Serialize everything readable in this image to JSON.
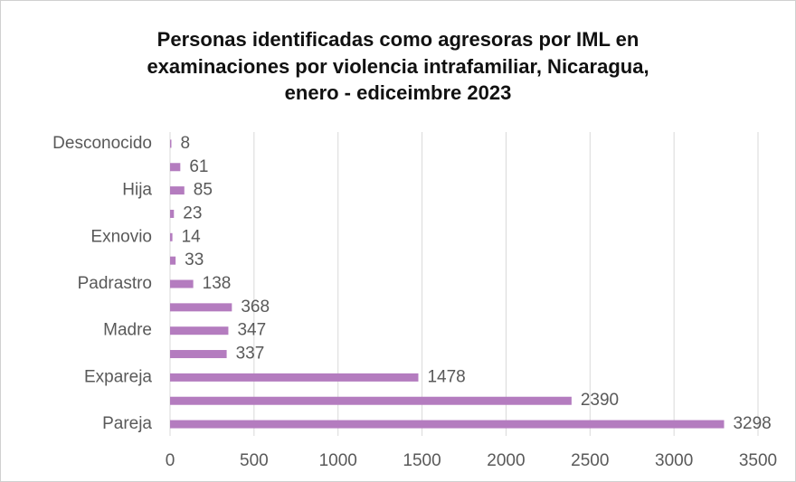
{
  "chart_data": {
    "type": "hbar",
    "title": [
      "Personas identificadas como agresoras por IML en",
      "examinaciones por violencia intrafamiliar, Nicaragua,",
      "enero - ediceimbre 2023"
    ],
    "categories": [
      "Desconocido",
      null,
      "Hija",
      null,
      "Exnovio",
      null,
      "Padrastro",
      null,
      "Madre",
      null,
      "Expareja",
      null,
      "Pareja"
    ],
    "values": [
      8,
      61,
      85,
      23,
      14,
      33,
      138,
      368,
      347,
      337,
      1478,
      2390,
      3298
    ],
    "color": "#b47cbf",
    "xlim": [
      0,
      3500
    ],
    "xticks": [
      0,
      500,
      1000,
      1500,
      2000,
      2500,
      3000,
      3500
    ],
    "grid": true
  }
}
